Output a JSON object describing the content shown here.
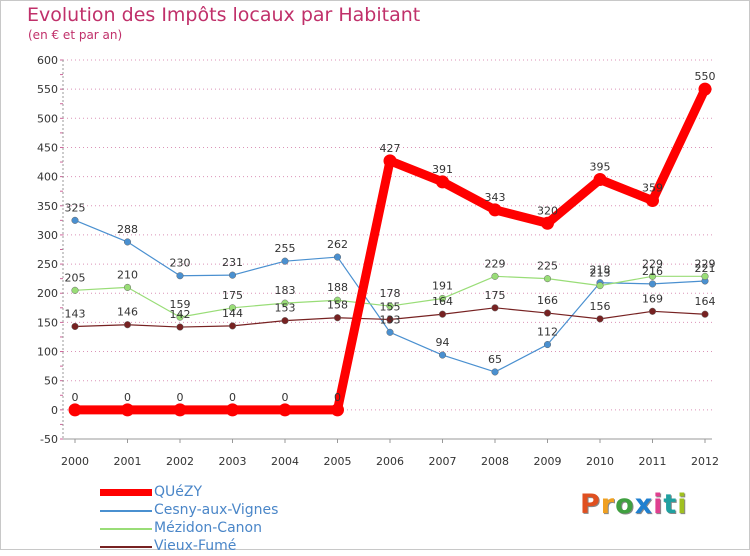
{
  "header": {
    "title": "Evolution des Impôts locaux par Habitant",
    "subtitle": "(en € et par an)"
  },
  "logo": {
    "text": "Proxiti",
    "colors": [
      "#e05020",
      "#f0a020",
      "#40a040",
      "#2080d0",
      "#e04090",
      "#20a0a0",
      "#a0c020"
    ]
  },
  "colors": {
    "title": "#c0306a",
    "grid": "#cc6699",
    "axis": "#999999",
    "legend_text": "#4a86c8"
  },
  "chart_data": {
    "type": "line",
    "title": "Evolution des Impôts locaux par Habitant",
    "subtitle": "(en € et par an)",
    "categories": [
      "2000",
      "2001",
      "2002",
      "2003",
      "2004",
      "2005",
      "2006",
      "2007",
      "2008",
      "2009",
      "2010",
      "2011",
      "2012"
    ],
    "ylim": [
      -50,
      600
    ],
    "yticks": [
      -50,
      0,
      50,
      100,
      150,
      200,
      250,
      300,
      350,
      400,
      450,
      500,
      550,
      600
    ],
    "grid": "dashed horizontal",
    "legend_position": "bottom-left",
    "series": [
      {
        "name": "QUéZY",
        "color": "#ff0000",
        "values": [
          0,
          0,
          0,
          0,
          0,
          0,
          427,
          391,
          343,
          320,
          395,
          359,
          550
        ]
      },
      {
        "name": "Cesny-aux-Vignes",
        "color": "#4a90d0",
        "values": [
          325,
          288,
          230,
          231,
          255,
          262,
          133,
          94,
          65,
          112,
          218,
          216,
          221
        ]
      },
      {
        "name": "Mézidon-Canon",
        "color": "#99dd77",
        "values": [
          205,
          210,
          159,
          175,
          183,
          188,
          178,
          191,
          229,
          225,
          213,
          229,
          229
        ]
      },
      {
        "name": "Vieux-Fumé",
        "color": "#772222",
        "values": [
          143,
          146,
          142,
          144,
          153,
          158,
          155,
          164,
          175,
          166,
          156,
          169,
          164
        ]
      }
    ]
  }
}
